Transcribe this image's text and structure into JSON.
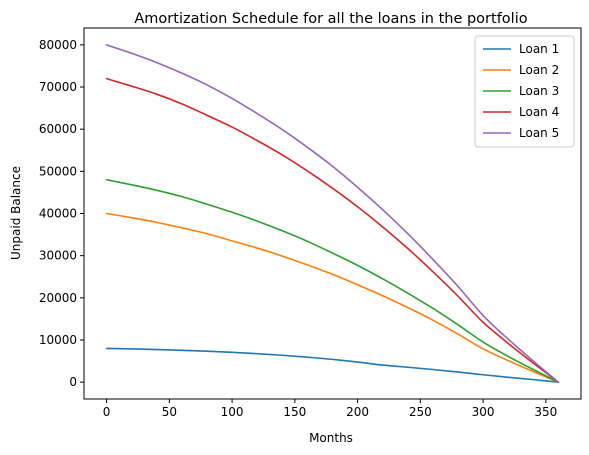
{
  "chart_data": {
    "type": "line",
    "title": "Amortization Schedule for all the loans in the portfolio",
    "xlabel": "Months",
    "ylabel": "Unpaid Balance",
    "xlim": [
      -18,
      378
    ],
    "ylim": [
      -4000,
      84000
    ],
    "xticks": [
      0,
      50,
      100,
      150,
      200,
      250,
      300,
      350
    ],
    "yticks": [
      0,
      10000,
      20000,
      30000,
      40000,
      50000,
      60000,
      70000,
      80000
    ],
    "legend_position": "top-right",
    "grid": false,
    "x": [
      0,
      20,
      40,
      60,
      80,
      100,
      120,
      140,
      160,
      180,
      200,
      220,
      240,
      260,
      280,
      300,
      320,
      340,
      360
    ],
    "series": [
      {
        "name": "Loan 1",
        "color": "#1f77b4",
        "values": [
          8000,
          7880,
          7730,
          7550,
          7330,
          7070,
          6750,
          6380,
          5930,
          5400,
          4770,
          4040,
          3530,
          3000,
          2400,
          1750,
          1150,
          600,
          0
        ]
      },
      {
        "name": "Loan 2",
        "color": "#ff7f0e",
        "values": [
          40000,
          39000,
          37900,
          36600,
          35200,
          33500,
          31800,
          29900,
          27800,
          25600,
          23100,
          20500,
          17700,
          14700,
          11400,
          7900,
          5100,
          2500,
          0
        ]
      },
      {
        "name": "Loan 3",
        "color": "#2ca02c",
        "values": [
          48000,
          46800,
          45500,
          44000,
          42200,
          40300,
          38200,
          35900,
          33400,
          30600,
          27700,
          24500,
          21100,
          17500,
          13600,
          9500,
          6100,
          3000,
          0
        ]
      },
      {
        "name": "Loan 4",
        "color": "#d62728",
        "values": [
          72000,
          70200,
          68300,
          66000,
          63300,
          60500,
          57300,
          53900,
          50100,
          46000,
          41600,
          36800,
          31700,
          26200,
          20400,
          14200,
          9200,
          4500,
          0
        ]
      },
      {
        "name": "Loan 5",
        "color": "#9467bd",
        "values": [
          80000,
          78000,
          75800,
          73300,
          70500,
          67300,
          63700,
          59900,
          55700,
          51200,
          46200,
          40900,
          35200,
          29100,
          22700,
          15800,
          10200,
          5000,
          0
        ]
      }
    ]
  }
}
